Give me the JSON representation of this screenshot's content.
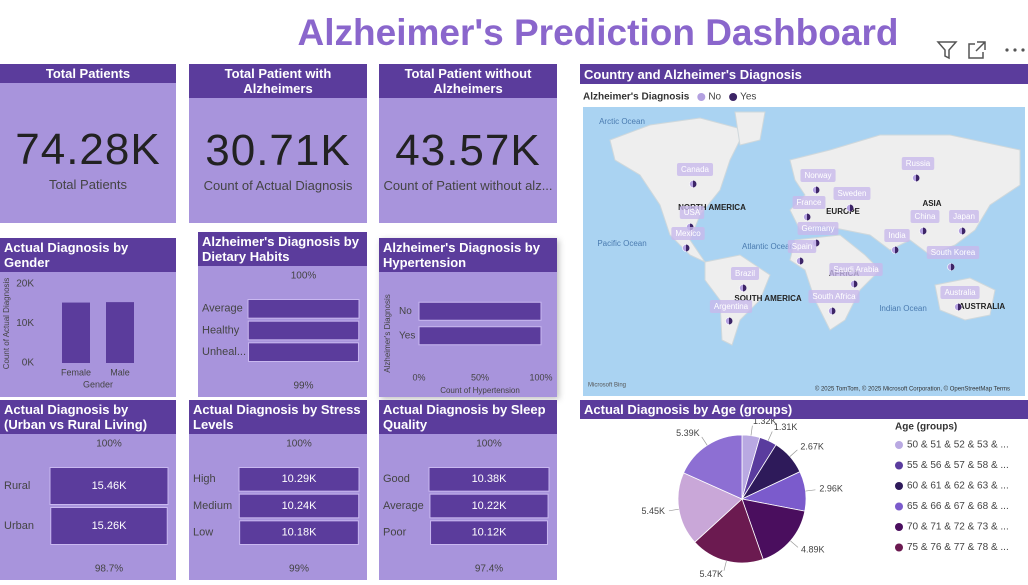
{
  "title": "Alzheimer's Prediction Dashboard",
  "cards": [
    {
      "header": "Total Patients",
      "value": "74.28K",
      "label": "Total Patients"
    },
    {
      "header": "Total Patient with Alzheimers",
      "value": "30.71K",
      "label": "Count of Actual Diagnosis"
    },
    {
      "header": "Total Patient without Alzheimers",
      "value": "43.57K",
      "label": "Count of Patient without alz..."
    }
  ],
  "chart_data": [
    {
      "type": "bar",
      "title": "Actual Diagnosis by Gender",
      "categories": [
        "Female",
        "Male"
      ],
      "values": [
        15300,
        15410
      ],
      "color": "#5b3c9c",
      "ylim": [
        0,
        20000
      ],
      "yticks": [
        {
          "value": 0,
          "label": "0K"
        },
        {
          "value": 10000,
          "label": "10K"
        },
        {
          "value": 20000,
          "label": "20K"
        }
      ],
      "x_label": "Gender",
      "y_label": "Count of Actual Diagnosis"
    },
    {
      "type": "funnel",
      "title": "Alzheimer's Diagnosis by Dietary Habits",
      "categories": [
        "Average",
        "Healthy",
        "Unheal..."
      ],
      "values": [
        10300,
        10250,
        10200
      ],
      "color": "#5b3c9c",
      "top_label": "100%",
      "bottom_label": "99%"
    },
    {
      "type": "hbar",
      "title": "Alzheimer's Diagnosis by Hypertension",
      "categories": [
        "No",
        "Yes"
      ],
      "values": [
        100,
        100
      ],
      "color": "#5b3c9c",
      "xlim": [
        0,
        100
      ],
      "xticks": [
        {
          "value": 0,
          "label": "0%"
        },
        {
          "value": 50,
          "label": "50%"
        },
        {
          "value": 100,
          "label": "100%"
        }
      ],
      "x_label": "Count of Hypertension",
      "y_label": "Alzheimer's Diagnosis"
    },
    {
      "type": "funnel",
      "title": "Actual Diagnosis by (Urban vs Rural Living)",
      "categories": [
        "Rural",
        "Urban"
      ],
      "values": [
        15460,
        15260
      ],
      "value_labels": [
        "15.46K",
        "15.26K"
      ],
      "color": "#5b3c9c",
      "top_label": "100%",
      "bottom_label": "98.7%"
    },
    {
      "type": "funnel",
      "title": "Actual Diagnosis by Stress Levels",
      "categories": [
        "High",
        "Medium",
        "Low"
      ],
      "values": [
        10290,
        10240,
        10180
      ],
      "value_labels": [
        "10.29K",
        "10.24K",
        "10.18K"
      ],
      "color": "#5b3c9c",
      "top_label": "100%",
      "bottom_label": "99%"
    },
    {
      "type": "funnel",
      "title": "Actual Diagnosis by Sleep Quality",
      "categories": [
        "Good",
        "Average",
        "Poor"
      ],
      "values": [
        10384,
        10220,
        10116
      ],
      "value_labels": [
        "10.38K",
        "10.22K",
        "10.12K"
      ],
      "color": "#5b3c9c",
      "top_label": "100%",
      "bottom_label": "97.4%"
    },
    {
      "type": "map",
      "title": "Country and Alzheimer's Diagnosis",
      "legend_title": "Alzheimer's Diagnosis",
      "series": [
        {
          "name": "No",
          "color": "#b3a0e0"
        },
        {
          "name": "Yes",
          "color": "#3c2466"
        }
      ],
      "locations": [
        "Canada",
        "USA",
        "Mexico",
        "Norway",
        "Sweden",
        "France",
        "Germany",
        "Spain",
        "Russia",
        "China",
        "Japan",
        "India",
        "South Korea",
        "Brazil",
        "Argentina",
        "South Africa",
        "Saudi Arabia",
        "Australia"
      ],
      "continents": [
        "NORTH AMERICA",
        "EUROPE",
        "ASIA",
        "AFRICA",
        "SOUTH AMERICA",
        "AUSTRALIA"
      ],
      "oceans": [
        "Arctic Ocean",
        "Pacific Ocean",
        "Atlantic Ocean",
        "Indian Ocean"
      ],
      "provider": "Microsoft Bing",
      "attribution": "© 2025 TomTom, © 2025 Microsoft Corporation, © OpenStreetMap  Terms"
    },
    {
      "type": "pie",
      "title": "Actual Diagnosis by Age (groups)",
      "legend_title": "Age (groups)",
      "categories": [
        "50 & 51 & 52 & 53 & ...",
        "55 & 56 & 57 & 58 & ...",
        "60 & 61 & 62 & 63 & ...",
        "65 & 66 & 67 & 68 & ...",
        "70 & 71 & 72 & 73 & ...",
        "75 & 76 & 77 & 78 & ...",
        null,
        null
      ],
      "values": [
        1320,
        1310,
        2670,
        2960,
        4890,
        5470,
        5450,
        5390
      ],
      "value_labels": [
        "1.32K",
        "1.31K",
        "2.67K",
        "2.96K",
        "4.89K",
        "5.47K",
        "5.45K",
        "5.39K"
      ],
      "colors": [
        "#b9a9e2",
        "#5a3c9e",
        "#2e1a5a",
        "#7b5bcc",
        "#4a0e5e",
        "#6b1a50",
        "#c9a7d8",
        "#8d6fd3"
      ]
    }
  ]
}
